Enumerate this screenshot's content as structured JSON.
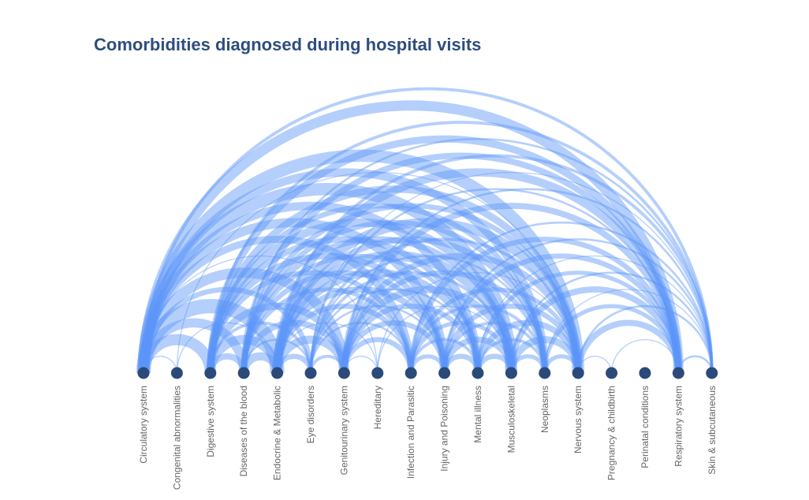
{
  "chart_data": {
    "type": "arc",
    "title": "Comorbidities diagnosed during hospital visits",
    "colors": {
      "link": "#5b95f9",
      "node": "#2b4a7a",
      "title": "#2e4e7e",
      "label": "#666666"
    },
    "nodes": [
      "Circulatory system",
      "Congenital abnormalities",
      "Digestive system",
      "Diseases of the blood",
      "Endocrine & Metabolic",
      "Eye disorders",
      "Genitourinary system",
      "Hereditary",
      "Infection and Parasitic",
      "Injury and Poisoning",
      "Mental illness",
      "Musculoskeletal",
      "Neoplasms",
      "Nervous system",
      "Pregnancy & childbirth",
      "Perinatal conditions",
      "Respiratory system",
      "Skin & subcutaneous"
    ],
    "links": [
      {
        "source": 0,
        "target": 17,
        "value": 3
      },
      {
        "source": 0,
        "target": 16,
        "value": 10
      },
      {
        "source": 0,
        "target": 13,
        "value": 12
      },
      {
        "source": 0,
        "target": 12,
        "value": 8
      },
      {
        "source": 0,
        "target": 11,
        "value": 12
      },
      {
        "source": 0,
        "target": 10,
        "value": 8
      },
      {
        "source": 0,
        "target": 9,
        "value": 9
      },
      {
        "source": 0,
        "target": 8,
        "value": 7
      },
      {
        "source": 0,
        "target": 7,
        "value": 1
      },
      {
        "source": 0,
        "target": 6,
        "value": 10
      },
      {
        "source": 0,
        "target": 5,
        "value": 5
      },
      {
        "source": 0,
        "target": 4,
        "value": 14
      },
      {
        "source": 0,
        "target": 3,
        "value": 9
      },
      {
        "source": 0,
        "target": 2,
        "value": 11
      },
      {
        "source": 0,
        "target": 1,
        "value": 1
      },
      {
        "source": 1,
        "target": 4,
        "value": 1
      },
      {
        "source": 1,
        "target": 13,
        "value": 1
      },
      {
        "source": 2,
        "target": 17,
        "value": 3
      },
      {
        "source": 2,
        "target": 16,
        "value": 7
      },
      {
        "source": 2,
        "target": 13,
        "value": 7
      },
      {
        "source": 2,
        "target": 12,
        "value": 5
      },
      {
        "source": 2,
        "target": 11,
        "value": 8
      },
      {
        "source": 2,
        "target": 10,
        "value": 6
      },
      {
        "source": 2,
        "target": 9,
        "value": 6
      },
      {
        "source": 2,
        "target": 8,
        "value": 5
      },
      {
        "source": 2,
        "target": 6,
        "value": 7
      },
      {
        "source": 2,
        "target": 5,
        "value": 3
      },
      {
        "source": 2,
        "target": 4,
        "value": 9
      },
      {
        "source": 2,
        "target": 3,
        "value": 6
      },
      {
        "source": 3,
        "target": 17,
        "value": 2
      },
      {
        "source": 3,
        "target": 16,
        "value": 6
      },
      {
        "source": 3,
        "target": 13,
        "value": 5
      },
      {
        "source": 3,
        "target": 12,
        "value": 5
      },
      {
        "source": 3,
        "target": 11,
        "value": 6
      },
      {
        "source": 3,
        "target": 10,
        "value": 4
      },
      {
        "source": 3,
        "target": 9,
        "value": 5
      },
      {
        "source": 3,
        "target": 8,
        "value": 4
      },
      {
        "source": 3,
        "target": 6,
        "value": 6
      },
      {
        "source": 3,
        "target": 5,
        "value": 2
      },
      {
        "source": 3,
        "target": 4,
        "value": 8
      },
      {
        "source": 4,
        "target": 17,
        "value": 3
      },
      {
        "source": 4,
        "target": 16,
        "value": 8
      },
      {
        "source": 4,
        "target": 13,
        "value": 9
      },
      {
        "source": 4,
        "target": 12,
        "value": 6
      },
      {
        "source": 4,
        "target": 11,
        "value": 10
      },
      {
        "source": 4,
        "target": 10,
        "value": 7
      },
      {
        "source": 4,
        "target": 9,
        "value": 6
      },
      {
        "source": 4,
        "target": 8,
        "value": 5
      },
      {
        "source": 4,
        "target": 7,
        "value": 1
      },
      {
        "source": 4,
        "target": 6,
        "value": 8
      },
      {
        "source": 4,
        "target": 5,
        "value": 5
      },
      {
        "source": 5,
        "target": 17,
        "value": 1
      },
      {
        "source": 5,
        "target": 16,
        "value": 2
      },
      {
        "source": 5,
        "target": 13,
        "value": 3
      },
      {
        "source": 5,
        "target": 12,
        "value": 2
      },
      {
        "source": 5,
        "target": 11,
        "value": 3
      },
      {
        "source": 5,
        "target": 10,
        "value": 2
      },
      {
        "source": 5,
        "target": 9,
        "value": 2
      },
      {
        "source": 5,
        "target": 8,
        "value": 2
      },
      {
        "source": 5,
        "target": 6,
        "value": 3
      },
      {
        "source": 6,
        "target": 17,
        "value": 2
      },
      {
        "source": 6,
        "target": 16,
        "value": 6
      },
      {
        "source": 6,
        "target": 13,
        "value": 6
      },
      {
        "source": 6,
        "target": 12,
        "value": 5
      },
      {
        "source": 6,
        "target": 11,
        "value": 7
      },
      {
        "source": 6,
        "target": 10,
        "value": 5
      },
      {
        "source": 6,
        "target": 9,
        "value": 5
      },
      {
        "source": 6,
        "target": 8,
        "value": 5
      },
      {
        "source": 6,
        "target": 7,
        "value": 1
      },
      {
        "source": 7,
        "target": 13,
        "value": 1
      },
      {
        "source": 7,
        "target": 11,
        "value": 1
      },
      {
        "source": 8,
        "target": 17,
        "value": 2
      },
      {
        "source": 8,
        "target": 16,
        "value": 5
      },
      {
        "source": 8,
        "target": 13,
        "value": 4
      },
      {
        "source": 8,
        "target": 12,
        "value": 3
      },
      {
        "source": 8,
        "target": 11,
        "value": 4
      },
      {
        "source": 8,
        "target": 10,
        "value": 3
      },
      {
        "source": 8,
        "target": 9,
        "value": 4
      },
      {
        "source": 9,
        "target": 17,
        "value": 2
      },
      {
        "source": 9,
        "target": 16,
        "value": 5
      },
      {
        "source": 9,
        "target": 13,
        "value": 5
      },
      {
        "source": 9,
        "target": 12,
        "value": 3
      },
      {
        "source": 9,
        "target": 11,
        "value": 6
      },
      {
        "source": 9,
        "target": 10,
        "value": 5
      },
      {
        "source": 10,
        "target": 17,
        "value": 1
      },
      {
        "source": 10,
        "target": 16,
        "value": 4
      },
      {
        "source": 10,
        "target": 13,
        "value": 6
      },
      {
        "source": 10,
        "target": 12,
        "value": 3
      },
      {
        "source": 10,
        "target": 11,
        "value": 5
      },
      {
        "source": 11,
        "target": 17,
        "value": 2
      },
      {
        "source": 11,
        "target": 16,
        "value": 6
      },
      {
        "source": 11,
        "target": 13,
        "value": 7
      },
      {
        "source": 11,
        "target": 12,
        "value": 4
      },
      {
        "source": 12,
        "target": 17,
        "value": 1
      },
      {
        "source": 12,
        "target": 16,
        "value": 4
      },
      {
        "source": 12,
        "target": 13,
        "value": 4
      },
      {
        "source": 13,
        "target": 17,
        "value": 2
      },
      {
        "source": 13,
        "target": 16,
        "value": 6
      },
      {
        "source": 13,
        "target": 14,
        "value": 1
      },
      {
        "source": 14,
        "target": 16,
        "value": 1
      },
      {
        "source": 16,
        "target": 17,
        "value": 2
      }
    ]
  }
}
